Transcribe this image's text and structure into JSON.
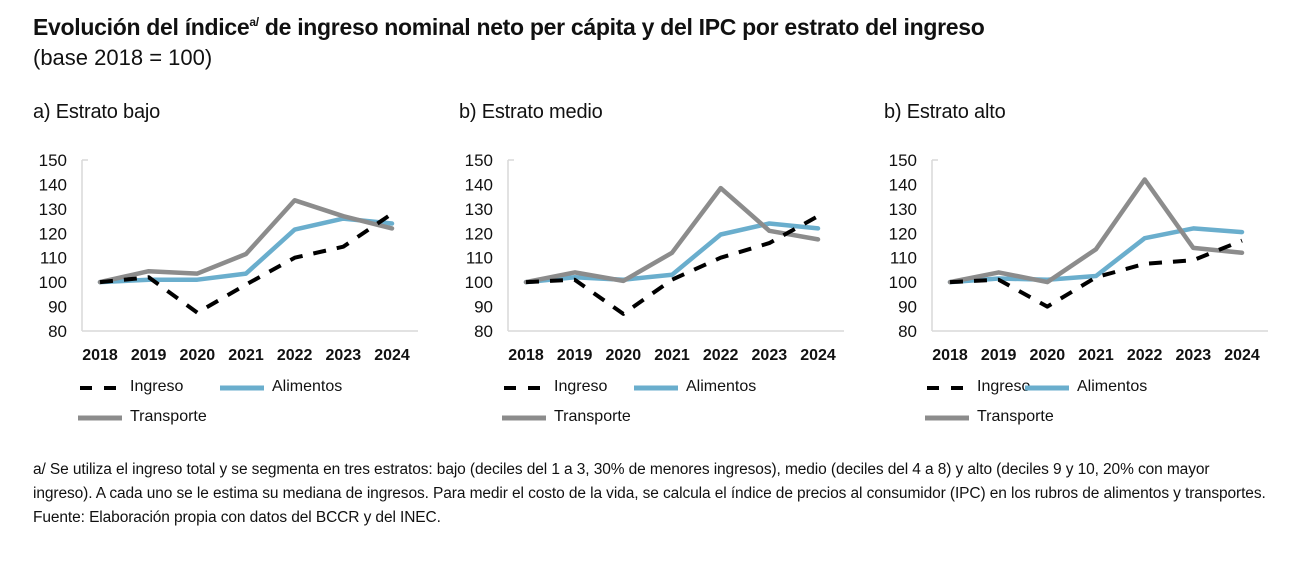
{
  "title": {
    "main_before_sup": "Evolución del índice",
    "sup": "a/",
    "main_after_sup": " de ingreso nominal neto per cápita y del IPC por estrato del ingreso",
    "subtitle": "(base 2018 = 100)"
  },
  "colors": {
    "ingreso": "#000000",
    "alimentos": "#6aaecd",
    "transporte": "#8c8c8c",
    "axis": "#d9d9d9"
  },
  "legend": {
    "ingreso": "Ingreso",
    "alimentos": "Alimentos",
    "transporte": "Transporte"
  },
  "chart_data": [
    {
      "type": "line",
      "title": "a) Estrato bajo",
      "categories": [
        "2018",
        "2019",
        "2020",
        "2021",
        "2022",
        "2023",
        "2024"
      ],
      "yticks": [
        "150",
        "140",
        "130",
        "120",
        "110",
        "100",
        "90",
        "80"
      ],
      "ylim": [
        80,
        150
      ],
      "xlabel": "",
      "ylabel": "",
      "grid": false,
      "legend_position": "bottom",
      "series": [
        {
          "key": "ingreso",
          "name": "Ingreso",
          "style": "dashed",
          "values": [
            100,
            102,
            87.5,
            99,
            110,
            114.5,
            128
          ]
        },
        {
          "key": "alimentos",
          "name": "Alimentos",
          "style": "solid",
          "values": [
            100,
            101,
            101,
            103.5,
            121.5,
            126,
            124
          ]
        },
        {
          "key": "transporte",
          "name": "Transporte",
          "style": "solid",
          "values": [
            100,
            104.5,
            103.5,
            111.5,
            133.5,
            127,
            122
          ]
        }
      ]
    },
    {
      "type": "line",
      "title": "b) Estrato medio",
      "categories": [
        "2018",
        "2019",
        "2020",
        "2021",
        "2022",
        "2023",
        "2024"
      ],
      "yticks": [
        "150",
        "140",
        "130",
        "120",
        "110",
        "100",
        "90",
        "80"
      ],
      "ylim": [
        80,
        150
      ],
      "xlabel": "",
      "ylabel": "",
      "grid": false,
      "legend_position": "bottom",
      "series": [
        {
          "key": "ingreso",
          "name": "Ingreso",
          "style": "dashed",
          "values": [
            100,
            101,
            87,
            101,
            110,
            116,
            127
          ]
        },
        {
          "key": "alimentos",
          "name": "Alimentos",
          "style": "solid",
          "values": [
            100,
            102,
            101,
            103,
            119.5,
            124,
            122
          ]
        },
        {
          "key": "transporte",
          "name": "Transporte",
          "style": "solid",
          "values": [
            100,
            104,
            100.5,
            112,
            138.5,
            121,
            117.5
          ]
        }
      ]
    },
    {
      "type": "line",
      "title": "b) Estrato alto",
      "categories": [
        "2018",
        "2019",
        "2020",
        "2021",
        "2022",
        "2023",
        "2024"
      ],
      "yticks": [
        "150",
        "140",
        "130",
        "120",
        "110",
        "100",
        "90",
        "80"
      ],
      "ylim": [
        80,
        150
      ],
      "xlabel": "",
      "ylabel": "",
      "grid": false,
      "legend_position": "bottom",
      "series": [
        {
          "key": "ingreso",
          "name": "Ingreso",
          "style": "dashed",
          "values": [
            100,
            101,
            90,
            102,
            107.5,
            109,
            117
          ]
        },
        {
          "key": "alimentos",
          "name": "Alimentos",
          "style": "solid",
          "values": [
            100,
            101.5,
            101,
            102.5,
            118,
            122,
            120.5
          ]
        },
        {
          "key": "transporte",
          "name": "Transporte",
          "style": "solid",
          "values": [
            100,
            104,
            100,
            113.5,
            142,
            114,
            112
          ]
        }
      ]
    }
  ],
  "notes": {
    "footnote": "a/ Se utiliza el ingreso total y se segmenta en tres estratos: bajo (deciles del 1 a 3, 30% de menores ingresos), medio (deciles del 4 a 8) y alto (deciles 9 y 10, 20% con mayor ingreso). A cada uno se le estima su mediana de ingresos. Para medir el costo de la vida, se calcula el índice de precios al consumidor (IPC) en los rubros de alimentos y transportes.",
    "source": "Fuente: Elaboración propia con datos del BCCR y del INEC."
  }
}
